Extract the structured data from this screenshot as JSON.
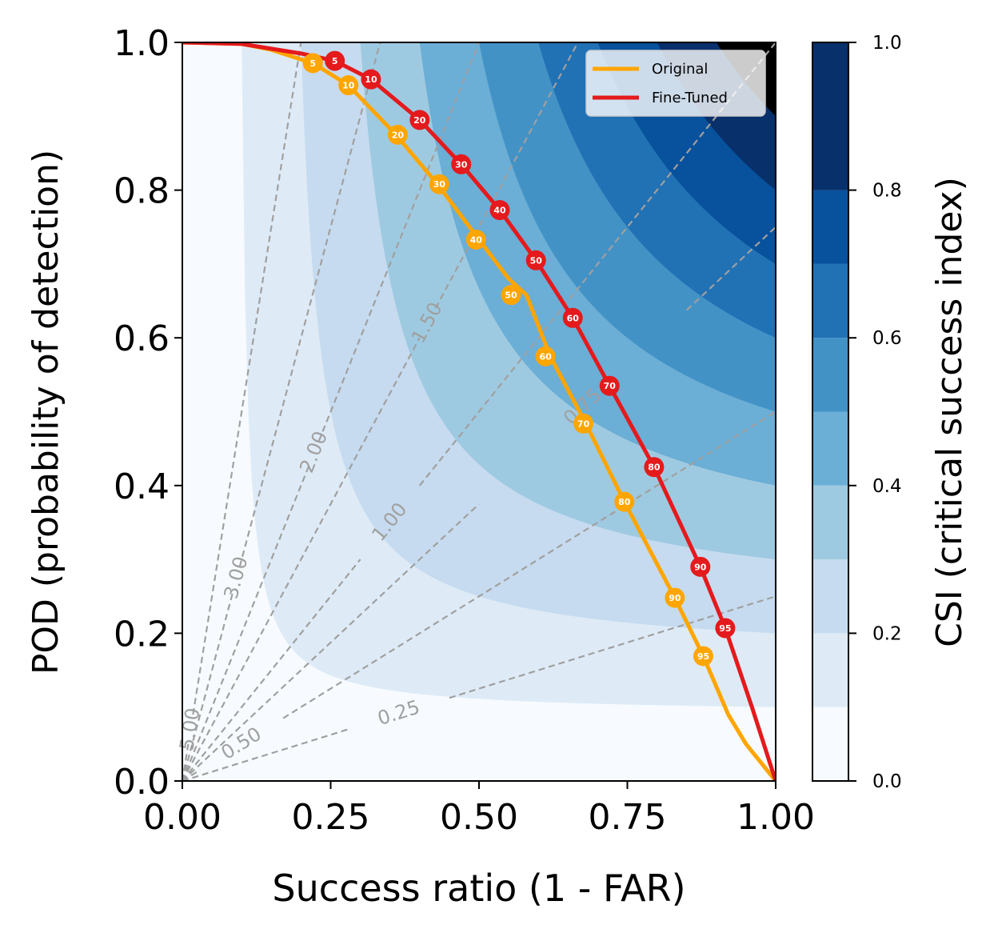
{
  "chart_data": {
    "type": "line",
    "title": "",
    "xlabel": "Success ratio (1 - FAR)",
    "ylabel": "POD (probability of detection)",
    "xlim": [
      0,
      1
    ],
    "ylim": [
      0,
      1
    ],
    "x_ticks": [
      "0.00",
      "0.25",
      "0.50",
      "0.75",
      "1.00"
    ],
    "y_ticks": [
      "0.0",
      "0.2",
      "0.4",
      "0.6",
      "0.8",
      "1.0"
    ],
    "colorbar": {
      "label": "CSI (critical success index)",
      "levels": [
        0.0,
        0.1,
        0.2,
        0.3,
        0.4,
        0.5,
        0.6,
        0.7,
        0.8,
        0.9,
        1.0
      ],
      "ticks": [
        "0.0",
        "0.2",
        "0.4",
        "0.6",
        "0.8",
        "1.0"
      ],
      "colors": [
        "#f7fbff",
        "#deebf7",
        "#c6dbef",
        "#9ecae1",
        "#6baed6",
        "#4292c6",
        "#2171b5",
        "#08519c",
        "#08306b"
      ]
    },
    "bias_lines": [
      {
        "value": 0.25,
        "label": "0.25"
      },
      {
        "value": 0.5,
        "label": "0.50"
      },
      {
        "value": 0.75,
        "label": "0.75"
      },
      {
        "value": 1.0,
        "label": "1.00"
      },
      {
        "value": 1.5,
        "label": "1.50"
      },
      {
        "value": 2.0,
        "label": "2.00"
      },
      {
        "value": 3.0,
        "label": "3.00"
      },
      {
        "value": 5.0,
        "label": "5.00"
      }
    ],
    "legend_position": "top-right",
    "series": [
      {
        "name": "Original",
        "color": "#ffa500",
        "line": [
          [
            0.0,
            1.0
          ],
          [
            0.1,
            0.998
          ],
          [
            0.15,
            0.99
          ],
          [
            0.2,
            0.977
          ],
          [
            0.22,
            0.972
          ],
          [
            0.28,
            0.942
          ],
          [
            0.36,
            0.875
          ],
          [
            0.43,
            0.808
          ],
          [
            0.5,
            0.733
          ],
          [
            0.55,
            0.68
          ],
          [
            0.58,
            0.658
          ],
          [
            0.62,
            0.575
          ],
          [
            0.68,
            0.484
          ],
          [
            0.745,
            0.378
          ],
          [
            0.83,
            0.248
          ],
          [
            0.878,
            0.169
          ],
          [
            0.92,
            0.09
          ],
          [
            0.95,
            0.05
          ],
          [
            1.0,
            0.0
          ]
        ],
        "points": [
          {
            "label": "5",
            "x": 0.22,
            "y": 0.972
          },
          {
            "label": "10",
            "x": 0.28,
            "y": 0.942
          },
          {
            "label": "20",
            "x": 0.363,
            "y": 0.875
          },
          {
            "label": "30",
            "x": 0.433,
            "y": 0.808
          },
          {
            "label": "40",
            "x": 0.495,
            "y": 0.733
          },
          {
            "label": "50",
            "x": 0.554,
            "y": 0.658
          },
          {
            "label": "60",
            "x": 0.612,
            "y": 0.575
          },
          {
            "label": "70",
            "x": 0.676,
            "y": 0.484
          },
          {
            "label": "80",
            "x": 0.745,
            "y": 0.378
          },
          {
            "label": "90",
            "x": 0.83,
            "y": 0.248
          },
          {
            "label": "95",
            "x": 0.878,
            "y": 0.169
          }
        ]
      },
      {
        "name": "Fine-Tuned",
        "color": "#e41a1c",
        "line": [
          [
            0.0,
            1.0
          ],
          [
            0.1,
            0.998
          ],
          [
            0.2,
            0.985
          ],
          [
            0.257,
            0.975
          ],
          [
            0.318,
            0.95
          ],
          [
            0.4,
            0.895
          ],
          [
            0.47,
            0.835
          ],
          [
            0.535,
            0.773
          ],
          [
            0.596,
            0.705
          ],
          [
            0.658,
            0.627
          ],
          [
            0.72,
            0.535
          ],
          [
            0.795,
            0.425
          ],
          [
            0.873,
            0.29
          ],
          [
            0.915,
            0.207
          ],
          [
            0.96,
            0.1
          ],
          [
            1.0,
            0.0
          ]
        ],
        "points": [
          {
            "label": "5",
            "x": 0.257,
            "y": 0.975
          },
          {
            "label": "10",
            "x": 0.318,
            "y": 0.95
          },
          {
            "label": "20",
            "x": 0.4,
            "y": 0.895
          },
          {
            "label": "30",
            "x": 0.47,
            "y": 0.835
          },
          {
            "label": "40",
            "x": 0.535,
            "y": 0.773
          },
          {
            "label": "50",
            "x": 0.596,
            "y": 0.705
          },
          {
            "label": "60",
            "x": 0.658,
            "y": 0.627
          },
          {
            "label": "70",
            "x": 0.72,
            "y": 0.535
          },
          {
            "label": "80",
            "x": 0.795,
            "y": 0.425
          },
          {
            "label": "90",
            "x": 0.873,
            "y": 0.29
          },
          {
            "label": "95",
            "x": 0.915,
            "y": 0.207
          }
        ]
      }
    ]
  }
}
